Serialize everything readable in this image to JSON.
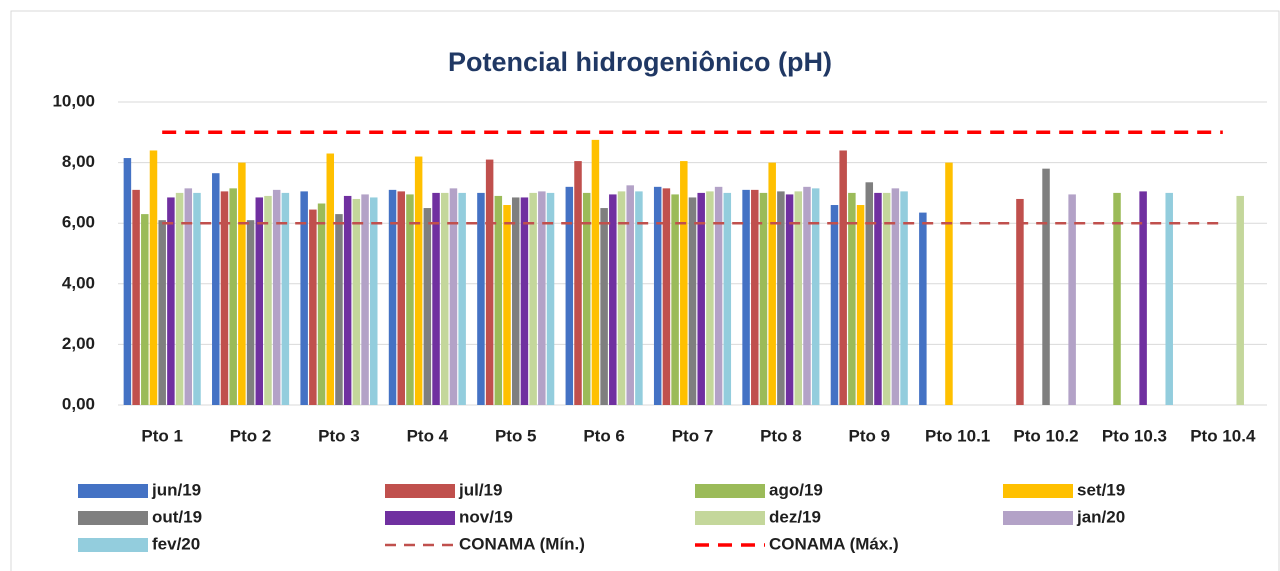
{
  "chart_data": {
    "type": "bar",
    "title": "Potencial hidrogeniônico (pH)",
    "categories": [
      "Pto 1",
      "Pto 2",
      "Pto 3",
      "Pto 4",
      "Pto 5",
      "Pto 6",
      "Pto 7",
      "Pto 8",
      "Pto 9",
      "Pto 10.1",
      "Pto 10.2",
      "Pto 10.3",
      "Pto 10.4"
    ],
    "ylim": [
      0,
      10
    ],
    "yticks": [
      {
        "value": 0,
        "label": "0,00"
      },
      {
        "value": 2,
        "label": "2,00"
      },
      {
        "value": 4,
        "label": "4,00"
      },
      {
        "value": 6,
        "label": "6,00"
      },
      {
        "value": 8,
        "label": "8,00"
      },
      {
        "value": 10,
        "label": "10,00"
      }
    ],
    "grid": true,
    "legend": "bottom",
    "series": [
      {
        "name": "jun/19",
        "color": "#4472c4",
        "values": [
          8.15,
          7.65,
          7.05,
          7.1,
          7.0,
          7.2,
          7.2,
          7.1,
          6.6,
          6.35,
          null,
          null,
          null
        ]
      },
      {
        "name": "jul/19",
        "color": "#c0504d",
        "values": [
          7.1,
          7.05,
          6.45,
          7.05,
          8.1,
          8.05,
          7.15,
          7.1,
          8.4,
          null,
          6.8,
          null,
          null
        ]
      },
      {
        "name": "ago/19",
        "color": "#9bbb59",
        "values": [
          6.3,
          7.15,
          6.65,
          6.95,
          6.9,
          7.0,
          6.95,
          7.0,
          7.0,
          null,
          null,
          7.0,
          null
        ]
      },
      {
        "name": "set/19",
        "color": "#ffc000",
        "values": [
          8.4,
          8.0,
          8.3,
          8.2,
          6.6,
          8.75,
          8.05,
          8.0,
          6.6,
          8.0,
          null,
          null,
          null
        ]
      },
      {
        "name": "out/19",
        "color": "#7f7f7f",
        "values": [
          6.1,
          6.1,
          6.3,
          6.5,
          6.85,
          6.5,
          6.85,
          7.05,
          7.35,
          null,
          7.8,
          null,
          null
        ]
      },
      {
        "name": "nov/19",
        "color": "#7030a0",
        "values": [
          6.85,
          6.85,
          6.9,
          7.0,
          6.85,
          6.95,
          7.0,
          6.95,
          7.0,
          null,
          null,
          7.05,
          null
        ]
      },
      {
        "name": "dez/19",
        "color": "#c4d79b",
        "values": [
          7.0,
          6.9,
          6.8,
          7.0,
          7.0,
          7.05,
          7.05,
          7.05,
          7.0,
          null,
          null,
          null,
          6.9
        ]
      },
      {
        "name": "jan/20",
        "color": "#b3a2c7",
        "values": [
          7.15,
          7.1,
          6.95,
          7.15,
          7.05,
          7.25,
          7.2,
          7.2,
          7.15,
          null,
          6.95,
          null,
          null
        ]
      },
      {
        "name": "fev/20",
        "color": "#93cddd",
        "values": [
          7.0,
          7.0,
          6.85,
          7.0,
          7.0,
          7.05,
          7.0,
          7.15,
          7.05,
          null,
          null,
          7.0,
          null
        ]
      },
      {
        "name": "CONAMA (Mín.)",
        "color": "#c0504d",
        "type": "line",
        "dashed": true,
        "values": [
          6,
          6,
          6,
          6,
          6,
          6,
          6,
          6,
          6,
          6,
          6,
          6,
          6
        ]
      },
      {
        "name": "CONAMA (Máx.)",
        "color": "#ff0000",
        "type": "line",
        "dashed": true,
        "values": [
          9,
          9,
          9,
          9,
          9,
          9,
          9,
          9,
          9,
          9,
          9,
          9,
          9
        ]
      }
    ]
  }
}
